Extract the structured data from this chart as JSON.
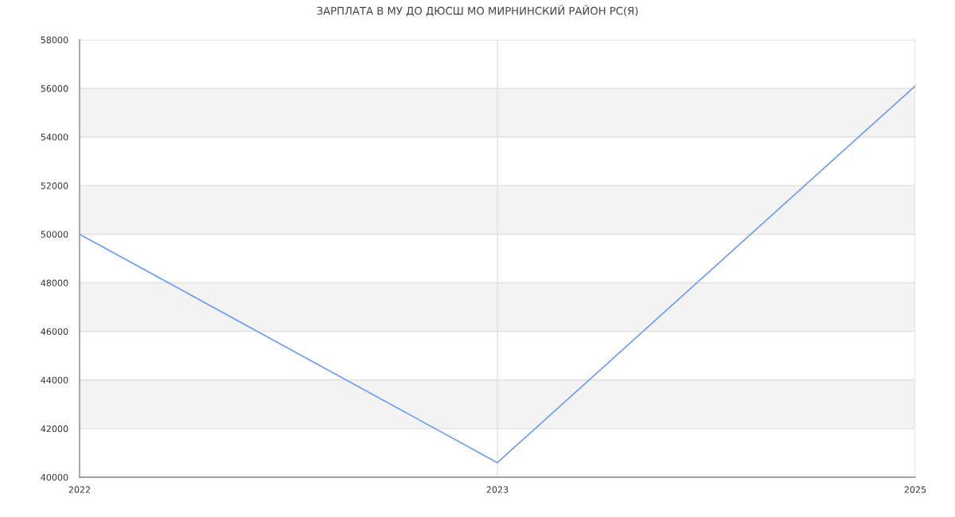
{
  "chart_data": {
    "type": "line",
    "title": "ЗАРПЛАТА В МУ ДО ДЮСШ МО МИРНИНСКИЙ РАЙОН РС(Я)",
    "categories": [
      "2022",
      "2023",
      "2025"
    ],
    "series": [
      {
        "color": "#6e9ef2",
        "values": [
          50000,
          40600,
          56100
        ]
      }
    ],
    "ylim": [
      40000,
      58000
    ],
    "yticks": [
      40000,
      42000,
      44000,
      46000,
      48000,
      50000,
      52000,
      54000,
      56000,
      58000
    ],
    "bands": [
      {
        "axis": "y",
        "from": 42000,
        "to": 44000,
        "color": "#f3f3f3"
      },
      {
        "axis": "y",
        "from": 46000,
        "to": 48000,
        "color": "#f3f3f3"
      },
      {
        "axis": "y",
        "from": 50000,
        "to": 52000,
        "color": "#f3f3f3"
      },
      {
        "axis": "y",
        "from": 54000,
        "to": 56000,
        "color": "#f3f3f3"
      }
    ],
    "grid": true,
    "legend": false,
    "marker": "none",
    "line_style": "solid"
  }
}
